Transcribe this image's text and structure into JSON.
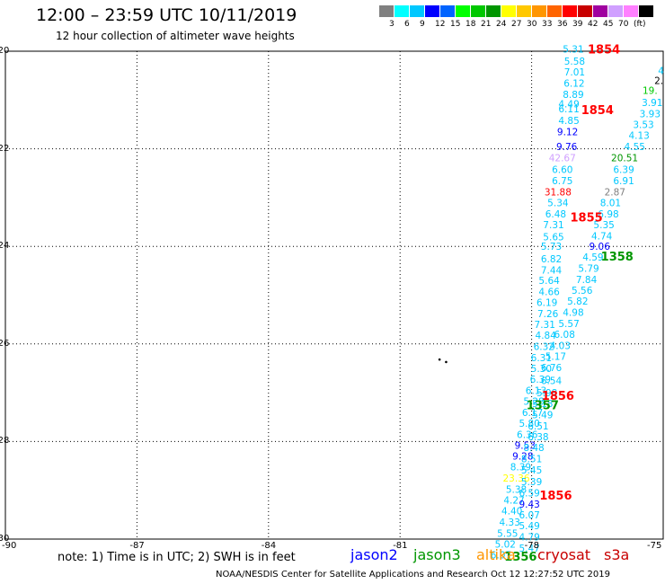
{
  "title": "12:00 – 23:59 UTC 10/11/2019",
  "subtitle": "12 hour collection of altimeter wave heights",
  "colorbar": {
    "colors": [
      "#808080",
      "#00ffff",
      "#00c8ff",
      "#0000ff",
      "#0064ff",
      "#00ff00",
      "#00c800",
      "#009600",
      "#ffff00",
      "#ffc800",
      "#ff9600",
      "#ff6400",
      "#ff0000",
      "#c80000",
      "#a000a0",
      "#d0a0ff",
      "#ff80ff",
      "#000000"
    ],
    "labels": [
      "3",
      "6",
      "9",
      "12",
      "15",
      "18",
      "21",
      "24",
      "27",
      "30",
      "33",
      "36",
      "39",
      "42",
      "45",
      "70",
      "(ft)"
    ]
  },
  "axes": {
    "lon_ticks": [
      "-90",
      "-87",
      "-84",
      "-81",
      "-78",
      "-75"
    ],
    "lat_ticks": [
      "-20",
      "-22",
      "-24",
      "-26",
      "-28",
      "-30"
    ]
  },
  "wave_heights": [
    {
      "t": "5.31",
      "lon": -77.05,
      "lat": -19.95,
      "c": "#00c8ff"
    },
    {
      "t": "5.58",
      "lon": -77.02,
      "lat": -20.2,
      "c": "#00c8ff"
    },
    {
      "t": "7.01",
      "lon": -77.02,
      "lat": -20.42,
      "c": "#00c8ff"
    },
    {
      "t": "6.12",
      "lon": -77.03,
      "lat": -20.65,
      "c": "#00c8ff"
    },
    {
      "t": "8.89",
      "lon": -77.05,
      "lat": -20.88,
      "c": "#00c8ff"
    },
    {
      "t": "4.49",
      "lon": -77.15,
      "lat": -21.08,
      "c": "#00c8ff"
    },
    {
      "t": "6.11",
      "lon": -77.15,
      "lat": -21.18,
      "c": "#00c8ff"
    },
    {
      "t": "4.85",
      "lon": -77.15,
      "lat": -21.42,
      "c": "#00c8ff"
    },
    {
      "t": "9.12",
      "lon": -77.18,
      "lat": -21.65,
      "c": "#0000ff"
    },
    {
      "t": "9.76",
      "lon": -77.2,
      "lat": -21.95,
      "c": "#0000ff"
    },
    {
      "t": "42.67",
      "lon": -77.3,
      "lat": -22.18,
      "c": "#d0a0ff"
    },
    {
      "t": "6.60",
      "lon": -77.3,
      "lat": -22.42,
      "c": "#00c8ff"
    },
    {
      "t": "6.75",
      "lon": -77.3,
      "lat": -22.65,
      "c": "#00c8ff"
    },
    {
      "t": "31.88",
      "lon": -77.4,
      "lat": -22.88,
      "c": "#ff0000"
    },
    {
      "t": "5.34",
      "lon": -77.4,
      "lat": -23.1,
      "c": "#00c8ff"
    },
    {
      "t": "6.48",
      "lon": -77.45,
      "lat": -23.33,
      "c": "#00c8ff"
    },
    {
      "t": "7.31",
      "lon": -77.5,
      "lat": -23.55,
      "c": "#00c8ff"
    },
    {
      "t": "5.65",
      "lon": -77.5,
      "lat": -23.8,
      "c": "#00c8ff"
    },
    {
      "t": "5.73",
      "lon": -77.55,
      "lat": -24.0,
      "c": "#00c8ff"
    },
    {
      "t": "6.82",
      "lon": -77.55,
      "lat": -24.25,
      "c": "#00c8ff"
    },
    {
      "t": "7.44",
      "lon": -77.55,
      "lat": -24.48,
      "c": "#00c8ff"
    },
    {
      "t": "5.64",
      "lon": -77.6,
      "lat": -24.7,
      "c": "#00c8ff"
    },
    {
      "t": "4.66",
      "lon": -77.6,
      "lat": -24.93,
      "c": "#00c8ff"
    },
    {
      "t": "6.19",
      "lon": -77.65,
      "lat": -25.15,
      "c": "#00c8ff"
    },
    {
      "t": "7.26",
      "lon": -77.63,
      "lat": -25.38,
      "c": "#00c8ff"
    },
    {
      "t": "7.31",
      "lon": -77.7,
      "lat": -25.6,
      "c": "#00c8ff"
    },
    {
      "t": "4.84",
      "lon": -77.68,
      "lat": -25.82,
      "c": "#00c8ff"
    },
    {
      "t": "6.32",
      "lon": -77.72,
      "lat": -26.05,
      "c": "#00c8ff"
    },
    {
      "t": "6.31",
      "lon": -77.78,
      "lat": -26.28,
      "c": "#00c8ff"
    },
    {
      "t": "5.30",
      "lon": -77.78,
      "lat": -26.5,
      "c": "#00c8ff"
    },
    {
      "t": "6.39",
      "lon": -77.8,
      "lat": -26.72,
      "c": "#00c8ff"
    },
    {
      "t": "6.13",
      "lon": -77.9,
      "lat": -26.95,
      "c": "#00c8ff"
    },
    {
      "t": "5.28",
      "lon": -77.95,
      "lat": -27.17,
      "c": "#00c8ff"
    },
    {
      "t": "6.17",
      "lon": -77.98,
      "lat": -27.4,
      "c": "#00c8ff"
    },
    {
      "t": "5.80",
      "lon": -78.05,
      "lat": -27.62,
      "c": "#00c8ff"
    },
    {
      "t": "6.36",
      "lon": -78.1,
      "lat": -27.85,
      "c": "#00c8ff"
    },
    {
      "t": "9.53",
      "lon": -78.15,
      "lat": -28.08,
      "c": "#0000ff"
    },
    {
      "t": "9.28",
      "lon": -78.2,
      "lat": -28.3,
      "c": "#0000ff"
    },
    {
      "t": "8.39",
      "lon": -78.25,
      "lat": -28.52,
      "c": "#00c8ff"
    },
    {
      "t": "23.36",
      "lon": -78.35,
      "lat": -28.75,
      "c": "#ffff00"
    },
    {
      "t": "5.38",
      "lon": -78.35,
      "lat": -28.98,
      "c": "#00c8ff"
    },
    {
      "t": "4.27",
      "lon": -78.4,
      "lat": -29.2,
      "c": "#00c8ff"
    },
    {
      "t": "4.40",
      "lon": -78.45,
      "lat": -29.42,
      "c": "#00c8ff"
    },
    {
      "t": "4.33",
      "lon": -78.5,
      "lat": -29.65,
      "c": "#00c8ff"
    },
    {
      "t": "5.55",
      "lon": -78.55,
      "lat": -29.88,
      "c": "#00c8ff"
    },
    {
      "t": "5.02",
      "lon": -78.6,
      "lat": -30.1,
      "c": "#00c8ff"
    },
    {
      "t": "6.07",
      "lon": -78.7,
      "lat": -30.32,
      "c": "#00c8ff"
    },
    {
      "t": "4",
      "lon": -75.05,
      "lat": -20.4,
      "c": "#00c8ff"
    },
    {
      "t": "2.",
      "lon": -75.1,
      "lat": -20.6,
      "c": "#000000"
    },
    {
      "t": "19.",
      "lon": -75.3,
      "lat": -20.8,
      "c": "#00c800"
    },
    {
      "t": "3.91",
      "lon": -75.25,
      "lat": -21.05,
      "c": "#00c8ff"
    },
    {
      "t": "3.93",
      "lon": -75.3,
      "lat": -21.28,
      "c": "#00c8ff"
    },
    {
      "t": "3.53",
      "lon": -75.45,
      "lat": -21.5,
      "c": "#00c8ff"
    },
    {
      "t": "4.13",
      "lon": -75.55,
      "lat": -21.72,
      "c": "#00c8ff"
    },
    {
      "t": "4.55",
      "lon": -75.65,
      "lat": -21.95,
      "c": "#00c8ff"
    },
    {
      "t": "20.51",
      "lon": -75.88,
      "lat": -22.18,
      "c": "#009600"
    },
    {
      "t": "6.39",
      "lon": -75.9,
      "lat": -22.42,
      "c": "#00c8ff"
    },
    {
      "t": "6.91",
      "lon": -75.9,
      "lat": -22.65,
      "c": "#00c8ff"
    },
    {
      "t": "2.87",
      "lon": -76.1,
      "lat": -22.88,
      "c": "#808080"
    },
    {
      "t": "8.01",
      "lon": -76.2,
      "lat": -23.1,
      "c": "#00c8ff"
    },
    {
      "t": "6.98",
      "lon": -76.25,
      "lat": -23.33,
      "c": "#00c8ff"
    },
    {
      "t": "5.35",
      "lon": -76.35,
      "lat": -23.55,
      "c": "#00c8ff"
    },
    {
      "t": "4.74",
      "lon": -76.4,
      "lat": -23.78,
      "c": "#00c8ff"
    },
    {
      "t": "9.06",
      "lon": -76.45,
      "lat": -24.0,
      "c": "#0000ff"
    },
    {
      "t": "4.59",
      "lon": -76.6,
      "lat": -24.22,
      "c": "#00c8ff"
    },
    {
      "t": "5.79",
      "lon": -76.7,
      "lat": -24.45,
      "c": "#00c8ff"
    },
    {
      "t": "7.84",
      "lon": -76.75,
      "lat": -24.68,
      "c": "#00c8ff"
    },
    {
      "t": "5.56",
      "lon": -76.85,
      "lat": -24.9,
      "c": "#00c8ff"
    },
    {
      "t": "5.82",
      "lon": -76.95,
      "lat": -25.12,
      "c": "#00c8ff"
    },
    {
      "t": "4.98",
      "lon": -77.05,
      "lat": -25.35,
      "c": "#00c8ff"
    },
    {
      "t": "5.57",
      "lon": -77.15,
      "lat": -25.58,
      "c": "#00c8ff"
    },
    {
      "t": "6.08",
      "lon": -77.25,
      "lat": -25.8,
      "c": "#00c8ff"
    },
    {
      "t": "4.03",
      "lon": -77.35,
      "lat": -26.03,
      "c": "#00c8ff"
    },
    {
      "t": "5.17",
      "lon": -77.45,
      "lat": -26.25,
      "c": "#00c8ff"
    },
    {
      "t": "6.76",
      "lon": -77.55,
      "lat": -26.48,
      "c": "#00c8ff"
    },
    {
      "t": "6.54",
      "lon": -77.55,
      "lat": -26.75,
      "c": "#00c8ff"
    },
    {
      "t": "5.98",
      "lon": -77.65,
      "lat": -27.0,
      "c": "#00c8ff"
    },
    {
      "t": "5.18",
      "lon": -77.75,
      "lat": -27.22,
      "c": "#00c8ff"
    },
    {
      "t": "5.49",
      "lon": -77.75,
      "lat": -27.45,
      "c": "#00c8ff"
    },
    {
      "t": "6.51",
      "lon": -77.85,
      "lat": -27.68,
      "c": "#00c8ff"
    },
    {
      "t": "6.38",
      "lon": -77.85,
      "lat": -27.9,
      "c": "#00c8ff"
    },
    {
      "t": "8.48",
      "lon": -77.95,
      "lat": -28.12,
      "c": "#00c8ff"
    },
    {
      "t": "8.51",
      "lon": -78.0,
      "lat": -28.35,
      "c": "#00c8ff"
    },
    {
      "t": "5.45",
      "lon": -78.0,
      "lat": -28.58,
      "c": "#00c8ff"
    },
    {
      "t": "5.39",
      "lon": -78.0,
      "lat": -28.82,
      "c": "#00c8ff"
    },
    {
      "t": "6.59",
      "lon": -78.05,
      "lat": -29.05,
      "c": "#00c8ff"
    },
    {
      "t": "9.43",
      "lon": -78.05,
      "lat": -29.28,
      "c": "#0000ff"
    },
    {
      "t": "6.07",
      "lon": -78.05,
      "lat": -29.5,
      "c": "#00c8ff"
    },
    {
      "t": "5.49",
      "lon": -78.05,
      "lat": -29.72,
      "c": "#00c8ff"
    },
    {
      "t": "4.79",
      "lon": -78.05,
      "lat": -29.95,
      "c": "#00c8ff"
    },
    {
      "t": "5.47",
      "lon": -78.05,
      "lat": -30.18,
      "c": "#00c8ff"
    }
  ],
  "time_labels": [
    {
      "t": "1854",
      "lon": -76.35,
      "lat": -19.95,
      "c": "#ff0000"
    },
    {
      "t": "1854",
      "lon": -76.5,
      "lat": -21.2,
      "c": "#ff0000"
    },
    {
      "t": "1855",
      "lon": -76.75,
      "lat": -23.4,
      "c": "#ff0000"
    },
    {
      "t": "1358",
      "lon": -76.05,
      "lat": -24.2,
      "c": "#009600"
    },
    {
      "t": "1856",
      "lon": -77.4,
      "lat": -27.05,
      "c": "#ff0000"
    },
    {
      "t": "1357",
      "lon": -77.75,
      "lat": -27.25,
      "c": "#009600"
    },
    {
      "t": "1856",
      "lon": -77.45,
      "lat": -29.1,
      "c": "#ff0000"
    },
    {
      "t": "1356",
      "lon": -78.25,
      "lat": -30.35,
      "c": "#009600"
    }
  ],
  "note": "note:  1) Time is in UTC;  2) SWH is in feet",
  "satellites": [
    {
      "name": "jason2",
      "color": "#0000ff"
    },
    {
      "name": "jason3",
      "color": "#009600"
    },
    {
      "name": "altika",
      "color": "#ff9600"
    },
    {
      "name": "cryosat",
      "color": "#c80000"
    },
    {
      "name": "s3a",
      "color": "#c80000"
    }
  ],
  "footer": "NOAA/NESDIS Center for Satellite Applications and Research     Oct 12 12:27:52 UTC 2019"
}
